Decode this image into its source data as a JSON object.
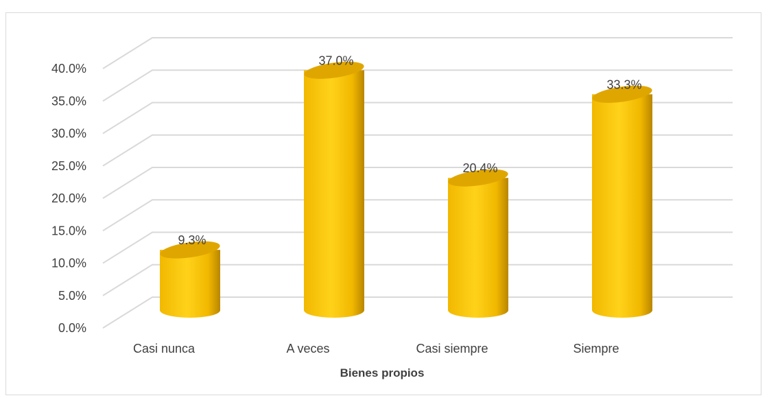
{
  "chart_data": {
    "type": "bar",
    "style": "3d-cylinder",
    "title": "",
    "xlabel": "Bienes propios",
    "ylabel": "",
    "categories": [
      "Casi nunca",
      "A veces",
      "Casi siempre",
      "Siempre"
    ],
    "series": [
      {
        "values": [
          9.3,
          37.0,
          20.4,
          33.3
        ],
        "value_labels": [
          "9.3%",
          "37.0%",
          "20.4%",
          "33.3%"
        ]
      }
    ],
    "ylim": [
      0,
      40
    ],
    "yticks": [
      0,
      5,
      10,
      15,
      20,
      25,
      30,
      35,
      40
    ],
    "ytick_labels": [
      "0.0%",
      "5.0%",
      "10.0%",
      "15.0%",
      "20.0%",
      "25.0%",
      "30.0%",
      "35.0%",
      "40.0%"
    ],
    "grid": true,
    "legend": "none",
    "colors": {
      "bar_light": "#ffd21a",
      "bar_mid": "#f2b800",
      "bar_dark": "#b98600",
      "bar_top": "#e0a600",
      "grid": "#d9d9d9",
      "text": "#404040"
    }
  }
}
